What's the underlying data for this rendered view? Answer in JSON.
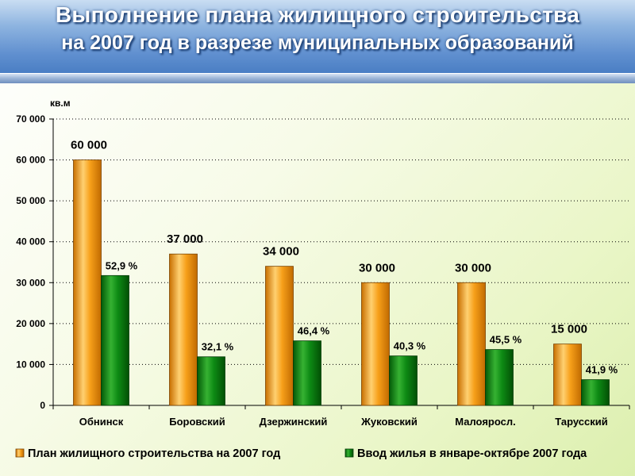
{
  "header": {
    "title_line1": "Выполнение плана жилищного строительства",
    "title_line2": "на 2007 год в разрезе муниципальных образований"
  },
  "colors": {
    "plan": "#f29a0f",
    "plan_light": "#ffd27a",
    "actual": "#0a7a10",
    "actual_light": "#3fbf3a"
  },
  "chart_data": {
    "type": "bar",
    "ylabel": "кв.м",
    "ylim": [
      0,
      70000
    ],
    "yticks": [
      0,
      10000,
      20000,
      30000,
      40000,
      50000,
      60000,
      70000
    ],
    "ytick_labels": [
      "0",
      "10 000",
      "20 000",
      "30 000",
      "40 000",
      "50 000",
      "60 000",
      "70 000"
    ],
    "grid": "horizontal dotted",
    "legend": "bottom",
    "categories": [
      "Обнинск",
      "Боровский",
      "Дзержинский",
      "Жуковский",
      "Малояросл.",
      "Тарусский"
    ],
    "series": [
      {
        "name": "План жилищного строительства на 2007 год",
        "values": [
          60000,
          37000,
          34000,
          30000,
          30000,
          15000
        ],
        "labels": [
          "60 000",
          "37 000",
          "34 000",
          "30 000",
          "30 000",
          "15 000"
        ]
      },
      {
        "name": "Ввод жилья в январе-октябре 2007 года",
        "values": [
          31740,
          11877,
          15776,
          12090,
          13650,
          6285
        ],
        "labels": [
          "52,9 %",
          "32,1 %",
          "46,4 %",
          "40,3 %",
          "45,5 %",
          "41,9 %"
        ]
      }
    ]
  }
}
